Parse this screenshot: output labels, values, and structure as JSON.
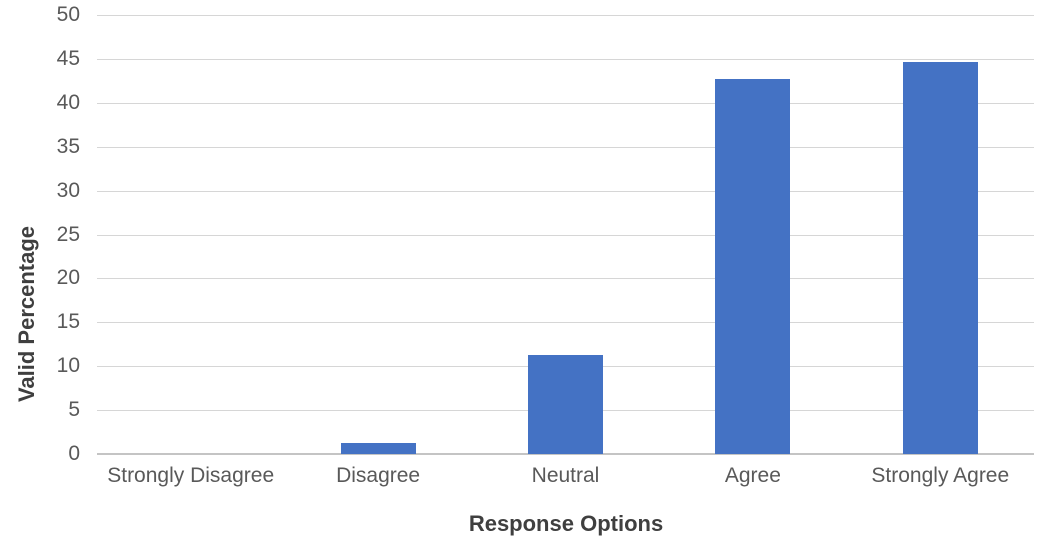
{
  "chart_data": {
    "type": "bar",
    "categories": [
      "Strongly Disagree",
      "Disagree",
      "Neutral",
      "Agree",
      "Strongly Agree"
    ],
    "values": [
      0,
      1.3,
      11.3,
      42.7,
      44.7
    ],
    "xlabel": "Response Options",
    "ylabel": "Valid Percentage",
    "ylim": [
      0,
      50
    ],
    "ytick_step": 5,
    "yticks": [
      0,
      5,
      10,
      15,
      20,
      25,
      30,
      35,
      40,
      45,
      50
    ],
    "grid": "horizontal-only",
    "legend": "none",
    "bar_color": "#4472C4",
    "gridline_color": "#D6D6D6",
    "axis_line_color": "#C4C4C4",
    "tick_label_color": "#595959",
    "axis_title_color": "#3F3F3F",
    "background_color": "#FFFFFF"
  }
}
